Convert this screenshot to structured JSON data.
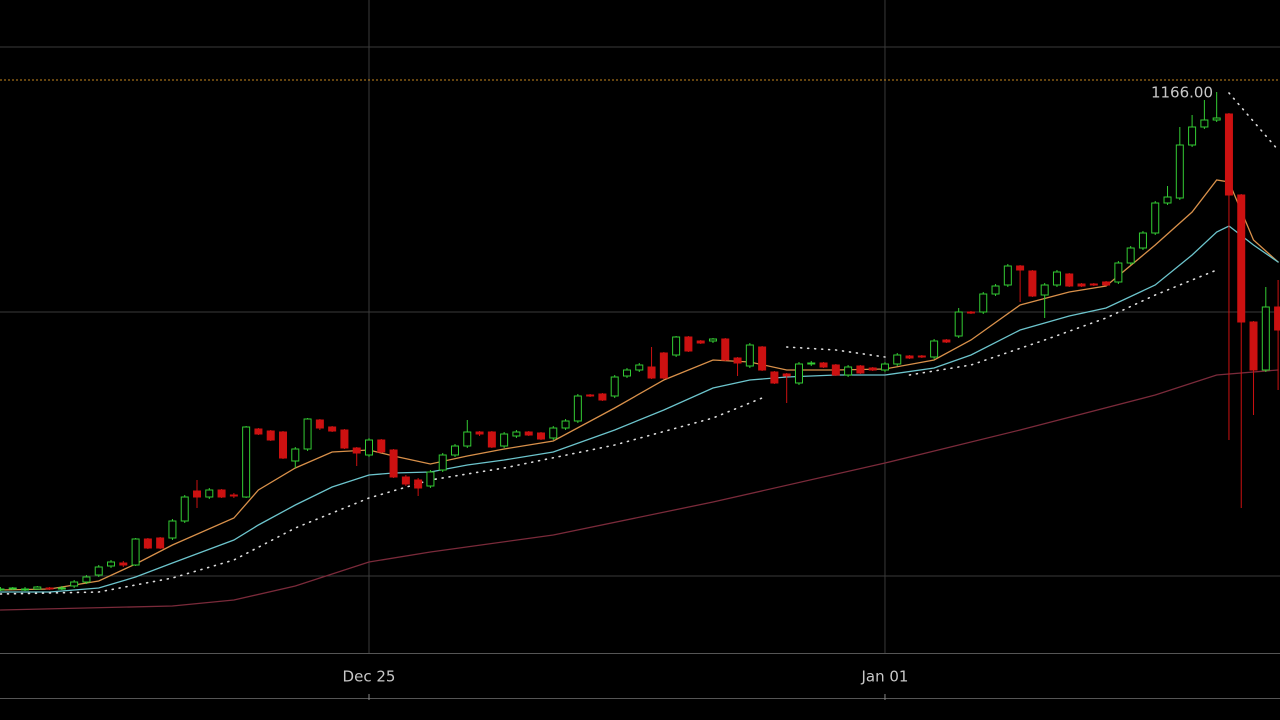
{
  "chart_data": {
    "type": "candlestick",
    "up_color": "#33cc33",
    "down_color": "#cc1111",
    "ylim": [
      591,
      1246
    ],
    "price_line": {
      "value": 1166,
      "label": "1166.00",
      "color": "#c8891e"
    },
    "categories": [
      null,
      null,
      null,
      null,
      null,
      null,
      null,
      null,
      null,
      null,
      null,
      null,
      null,
      null,
      null,
      null,
      null,
      null,
      null,
      null,
      null,
      null,
      null,
      null,
      null,
      null,
      null,
      null,
      null,
      null,
      "Dec 25",
      null,
      null,
      null,
      null,
      null,
      null,
      null,
      null,
      null,
      null,
      null,
      null,
      null,
      null,
      null,
      null,
      null,
      null,
      null,
      null,
      null,
      null,
      null,
      null,
      null,
      null,
      null,
      null,
      null,
      null,
      null,
      null,
      null,
      null,
      null,
      null,
      null,
      null,
      null,
      null,
      null,
      "Jan 01",
      null,
      null,
      null,
      null,
      null,
      null,
      null,
      null,
      null,
      null,
      null,
      null,
      null,
      null,
      null,
      null,
      null,
      null,
      null,
      null,
      null,
      null,
      null,
      null,
      null,
      null,
      null,
      null,
      null,
      null,
      null,
      null
    ],
    "open": [
      657,
      657,
      657,
      657,
      658,
      657,
      660,
      664,
      671,
      680,
      683,
      681,
      707,
      708,
      708,
      725,
      755,
      749,
      756,
      751,
      749,
      817,
      815,
      814,
      785,
      797,
      826,
      819,
      816,
      798,
      791,
      806,
      796,
      769,
      766,
      760,
      776,
      791,
      800,
      814,
      814,
      800,
      810,
      814,
      813,
      808,
      818,
      825,
      851,
      852,
      850,
      870,
      876,
      879,
      893,
      891,
      909,
      905,
      905,
      907,
      888,
      880,
      899,
      874,
      872,
      863,
      882,
      883,
      881,
      871,
      880,
      878,
      876,
      882,
      890,
      890,
      889,
      906,
      910,
      934,
      934,
      952,
      961,
      980,
      975,
      951,
      961,
      972,
      962,
      962,
      964,
      964,
      983,
      998,
      1013,
      1043,
      1048,
      1101,
      1119,
      1126,
      1132,
      1051,
      924,
      876,
      939
    ],
    "high": [
      659,
      659,
      659,
      660,
      659,
      660,
      666,
      671,
      681,
      686,
      685,
      708,
      708,
      709,
      727,
      751,
      766,
      758,
      757,
      753,
      820,
      818,
      816,
      815,
      799,
      828,
      827,
      820,
      817,
      799,
      808,
      807,
      797,
      771,
      768,
      776,
      793,
      802,
      826,
      815,
      815,
      814,
      816,
      815,
      814,
      820,
      827,
      852,
      852,
      853,
      871,
      878,
      883,
      899,
      894,
      910,
      910,
      906,
      908,
      908,
      889,
      903,
      900,
      875,
      873,
      884,
      885,
      884,
      882,
      881,
      881,
      879,
      884,
      893,
      891,
      891,
      907,
      907,
      938,
      935,
      954,
      962,
      982,
      981,
      976,
      963,
      976,
      973,
      963,
      963,
      965,
      985,
      1000,
      1015,
      1045,
      1060,
      1119,
      1131,
      1146,
      1154,
      1133,
      1052,
      925,
      959,
      966
    ],
    "low": [
      655,
      656,
      655,
      656,
      656,
      656,
      658,
      662,
      669,
      678,
      679,
      680,
      697,
      697,
      706,
      723,
      738,
      747,
      748,
      748,
      748,
      811,
      805,
      787,
      778,
      795,
      816,
      814,
      797,
      780,
      789,
      793,
      768,
      760,
      750,
      758,
      774,
      789,
      798,
      810,
      798,
      798,
      808,
      810,
      806,
      806,
      816,
      823,
      849,
      845,
      848,
      868,
      874,
      867,
      867,
      889,
      894,
      902,
      903,
      885,
      870,
      878,
      875,
      862,
      843,
      861,
      880,
      878,
      870,
      869,
      872,
      875,
      874,
      880,
      887,
      888,
      887,
      903,
      908,
      932,
      932,
      950,
      959,
      944,
      949,
      928,
      959,
      959,
      959,
      960,
      960,
      962,
      981,
      996,
      1011,
      1041,
      1046,
      1099,
      1117,
      1124,
      806,
      738,
      831,
      874,
      856
    ],
    "close": [
      657,
      658,
      657,
      659,
      657,
      658,
      664,
      669,
      679,
      684,
      681,
      707,
      698,
      698,
      725,
      749,
      749,
      756,
      749,
      750,
      819,
      812,
      806,
      788,
      797,
      827,
      818,
      815,
      798,
      793,
      806,
      794,
      769,
      762,
      758,
      774,
      791,
      800,
      814,
      812,
      799,
      812,
      814,
      811,
      807,
      818,
      825,
      850,
      850,
      846,
      869,
      876,
      881,
      868,
      868,
      909,
      895,
      903,
      907,
      886,
      883,
      901,
      876,
      863,
      870,
      882,
      883,
      879,
      871,
      879,
      873,
      876,
      882,
      891,
      888,
      889,
      905,
      904,
      934,
      933,
      952,
      960,
      980,
      976,
      950,
      961,
      974,
      960,
      960,
      961,
      961,
      983,
      998,
      1013,
      1043,
      1049,
      1101,
      1119,
      1126,
      1128,
      1051,
      924,
      876,
      939,
      916
    ],
    "lines": [
      {
        "color": "#d8904a",
        "dash": false,
        "x": [
          0,
          4,
          8,
          11,
          14,
          19,
          21,
          24,
          27,
          30,
          32,
          35,
          38,
          41,
          45,
          50,
          54,
          58,
          61,
          64,
          68,
          72,
          76,
          79,
          83,
          87,
          90,
          94,
          97,
          99,
          100,
          102,
          104
        ],
        "values": [
          656,
          657,
          665,
          682,
          701,
          728,
          756,
          778,
          794,
          796,
          790,
          782,
          790,
          797,
          805,
          838,
          866,
          886,
          884,
          876,
          876,
          877,
          886,
          906,
          941,
          954,
          960,
          1001,
          1034,
          1066,
          1064,
          1006,
          984
        ]
      },
      {
        "color": "#6cc4cc",
        "dash": false,
        "x": [
          0,
          4,
          8,
          11,
          14,
          19,
          21,
          24,
          27,
          30,
          32,
          35,
          38,
          41,
          45,
          50,
          54,
          58,
          61,
          64,
          68,
          72,
          76,
          79,
          83,
          87,
          90,
          94,
          97,
          99,
          100,
          102,
          104
        ],
        "values": [
          654,
          654,
          658,
          669,
          683,
          706,
          721,
          741,
          759,
          771,
          773,
          774,
          781,
          786,
          794,
          816,
          836,
          858,
          866,
          869,
          871,
          871,
          878,
          891,
          916,
          930,
          938,
          961,
          991,
          1014,
          1020,
          1001,
          984
        ]
      },
      {
        "color": "#dddddd",
        "dash": true,
        "x": [
          0,
          8,
          14,
          19,
          24,
          30,
          35,
          41,
          50,
          58,
          62,
          63,
          64,
          68,
          72,
          73,
          74,
          79,
          85,
          90,
          94,
          99,
          99.5,
          100,
          104
        ],
        "values": [
          652,
          654,
          668,
          686,
          718,
          748,
          766,
          778,
          801,
          828,
          848,
          null,
          899,
          896,
          889,
          null,
          871,
          881,
          906,
          928,
          951,
          976,
          null,
          1153,
          1096
        ]
      },
      {
        "color": "#7a2a3a",
        "dash": false,
        "x": [
          0,
          14,
          19,
          24,
          30,
          35,
          45,
          58,
          72,
          83,
          94,
          99,
          104
        ],
        "values": [
          636,
          640,
          646,
          660,
          684,
          694,
          711,
          744,
          783,
          816,
          851,
          871,
          876
        ]
      }
    ]
  }
}
